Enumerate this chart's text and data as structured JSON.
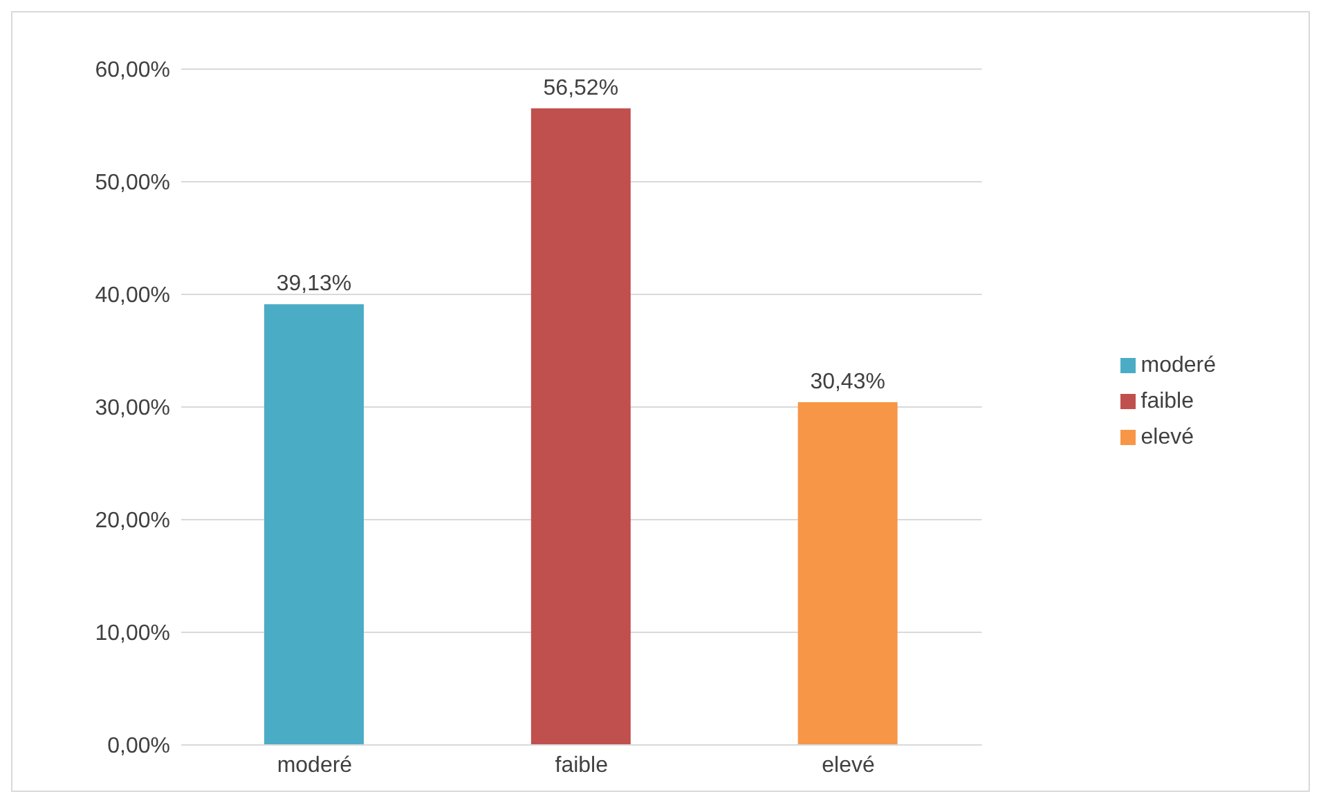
{
  "chart_data": {
    "type": "bar",
    "categories": [
      "moderé",
      "faible",
      "elevé"
    ],
    "stacked": true,
    "series": [
      {
        "name": "moderé",
        "color": "#4bacc6",
        "values": [
          39.13,
          null,
          null
        ],
        "value_labels": [
          "39,13%",
          null,
          null
        ]
      },
      {
        "name": "faible",
        "color": "#c0504d",
        "values": [
          null,
          56.52,
          null
        ],
        "value_labels": [
          null,
          "56,52%",
          null
        ]
      },
      {
        "name": "elevé",
        "color": "#f79646",
        "values": [
          null,
          null,
          30.43
        ],
        "value_labels": [
          null,
          null,
          "30,43%"
        ]
      }
    ],
    "ylim": [
      0,
      60
    ],
    "yticks": [
      {
        "value": 0,
        "label": "0,00%"
      },
      {
        "value": 10,
        "label": "10,00%"
      },
      {
        "value": 20,
        "label": "20,00%"
      },
      {
        "value": 30,
        "label": "30,00%"
      },
      {
        "value": 40,
        "label": "40,00%"
      },
      {
        "value": 50,
        "label": "50,00%"
      },
      {
        "value": 60,
        "label": "60,00%"
      }
    ],
    "grid": "y",
    "legend": "right"
  }
}
